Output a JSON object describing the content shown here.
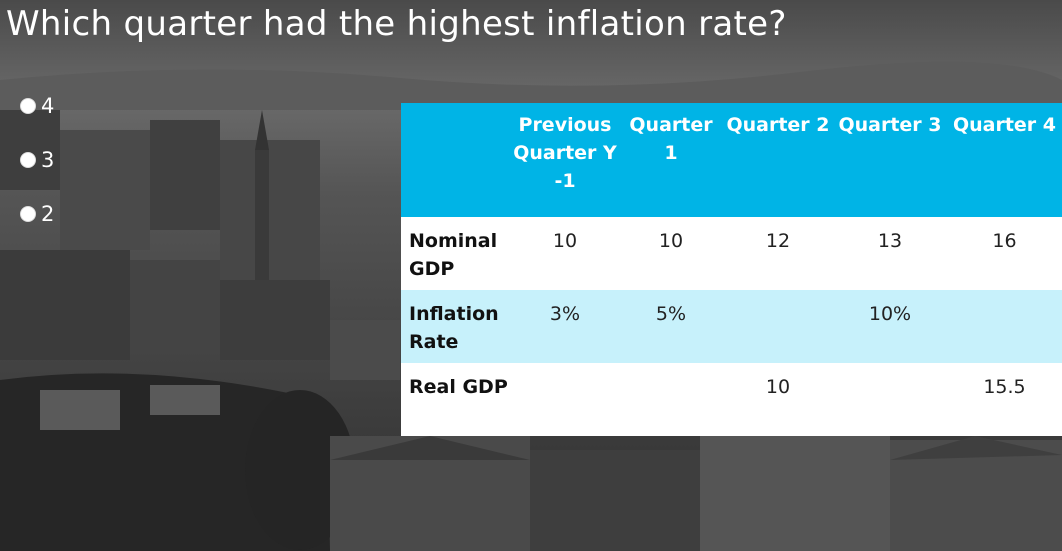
{
  "question": "Which quarter had the highest inflation rate?",
  "options": [
    {
      "label": "4"
    },
    {
      "label": "3"
    },
    {
      "label": "2"
    }
  ],
  "table": {
    "headers": [
      "",
      "Previous Quarter Y -1",
      "Quarter 1",
      "Quarter 2",
      "Quarter 3",
      "Quarter 4"
    ],
    "rows": [
      {
        "label": "Nominal GDP",
        "cells": [
          "10",
          "10",
          "12",
          "13",
          "16"
        ]
      },
      {
        "label": "Inflation Rate",
        "cells": [
          "3%",
          "5%",
          "",
          "10%",
          ""
        ]
      },
      {
        "label": "Real GDP",
        "cells": [
          "",
          "",
          "10",
          "",
          "15.5"
        ]
      }
    ]
  },
  "colors": {
    "header_bg": "#00b4e6",
    "row_light": "#c7f1fb",
    "row_white": "#ffffff",
    "text_white": "#ffffff"
  },
  "background": {
    "icon": "city-aerial-photo"
  }
}
